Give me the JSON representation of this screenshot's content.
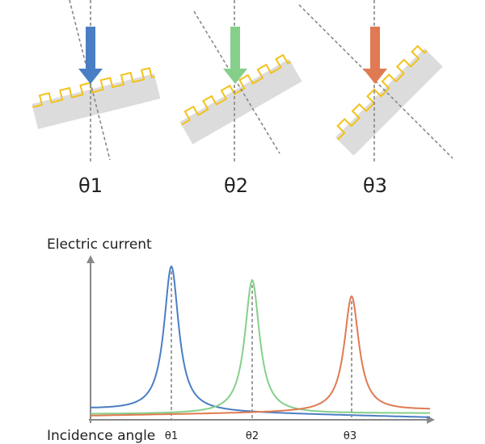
{
  "panels": [
    {
      "label": "θ1"
    },
    {
      "label": "θ2"
    },
    {
      "label": "θ3"
    }
  ],
  "graph": {
    "y_axis_label": "Electric current",
    "x_axis_label": "Incidence angle",
    "peak_labels": [
      "θ1",
      "θ2",
      "θ3"
    ]
  }
}
